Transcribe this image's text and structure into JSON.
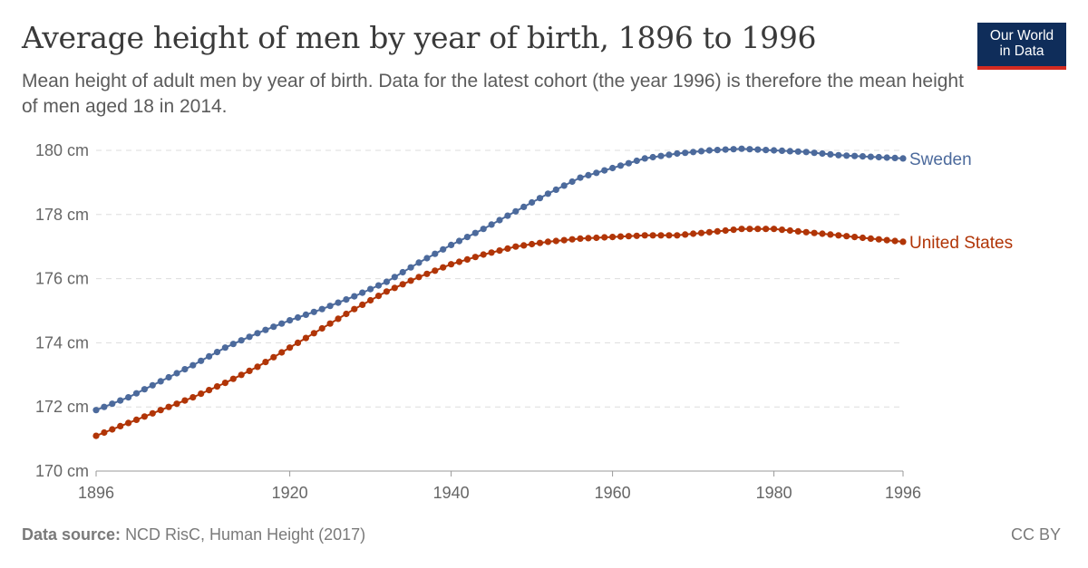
{
  "header": {
    "title": "Average height of men by year of birth, 1896 to 1996",
    "subtitle": "Mean height of adult men by year of birth. Data for the latest cohort (the year 1996) is therefore the mean height of men aged 18 in 2014."
  },
  "logo": {
    "line1": "Our World",
    "line2": "in Data"
  },
  "footer": {
    "source_label": "Data source:",
    "source_text": "NCD RisC, Human Height (2017)",
    "license": "CC BY"
  },
  "colors": {
    "sweden": "#4c6a9c",
    "united_states": "#b13507",
    "grid": "#dddddd",
    "axis": "#666666"
  },
  "chart_data": {
    "type": "line",
    "title": "Average height of men by year of birth, 1896 to 1996",
    "xlabel": "",
    "ylabel": "",
    "xlim": [
      1896,
      1996
    ],
    "ylim": [
      170,
      180
    ],
    "x_ticks": [
      1896,
      1920,
      1940,
      1960,
      1980,
      1996
    ],
    "y_ticks": [
      170,
      172,
      174,
      176,
      178,
      180
    ],
    "y_unit": "cm",
    "markers": true,
    "series": [
      {
        "name": "Sweden",
        "color": "#4c6a9c",
        "points": [
          [
            1896,
            171.9
          ],
          [
            1900,
            172.3
          ],
          [
            1904,
            172.8
          ],
          [
            1908,
            173.3
          ],
          [
            1912,
            173.85
          ],
          [
            1916,
            174.3
          ],
          [
            1920,
            174.7
          ],
          [
            1924,
            175.05
          ],
          [
            1928,
            175.45
          ],
          [
            1932,
            175.9
          ],
          [
            1936,
            176.5
          ],
          [
            1940,
            177.05
          ],
          [
            1944,
            177.55
          ],
          [
            1948,
            178.1
          ],
          [
            1952,
            178.65
          ],
          [
            1956,
            179.15
          ],
          [
            1960,
            179.45
          ],
          [
            1964,
            179.75
          ],
          [
            1968,
            179.9
          ],
          [
            1972,
            180.0
          ],
          [
            1976,
            180.05
          ],
          [
            1980,
            180.0
          ],
          [
            1984,
            179.95
          ],
          [
            1988,
            179.85
          ],
          [
            1992,
            179.8
          ],
          [
            1996,
            179.75
          ]
        ]
      },
      {
        "name": "United States",
        "color": "#b13507",
        "points": [
          [
            1896,
            171.1
          ],
          [
            1900,
            171.5
          ],
          [
            1904,
            171.9
          ],
          [
            1908,
            172.3
          ],
          [
            1912,
            172.75
          ],
          [
            1916,
            173.25
          ],
          [
            1920,
            173.85
          ],
          [
            1924,
            174.45
          ],
          [
            1928,
            175.05
          ],
          [
            1932,
            175.6
          ],
          [
            1936,
            176.05
          ],
          [
            1940,
            176.45
          ],
          [
            1944,
            176.75
          ],
          [
            1948,
            177.0
          ],
          [
            1952,
            177.15
          ],
          [
            1956,
            177.25
          ],
          [
            1960,
            177.3
          ],
          [
            1964,
            177.35
          ],
          [
            1968,
            177.35
          ],
          [
            1972,
            177.45
          ],
          [
            1976,
            177.55
          ],
          [
            1980,
            177.55
          ],
          [
            1984,
            177.45
          ],
          [
            1988,
            177.35
          ],
          [
            1992,
            177.25
          ],
          [
            1996,
            177.15
          ]
        ]
      }
    ]
  }
}
